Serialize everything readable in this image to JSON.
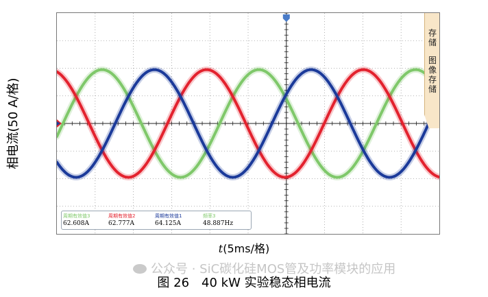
{
  "chart_data": {
    "type": "line",
    "xlabel_italic": "t",
    "xlabel_rest": "(5ms/格)",
    "ylabel": "相电流(50 A/格)",
    "grid": true,
    "x_divisions": 10,
    "y_divisions": 8,
    "x_range_div": [
      0,
      10
    ],
    "y_range_div": [
      -4,
      4
    ],
    "series": [
      {
        "color": "#7fc86a",
        "amplitude_div": 1.95,
        "phase_deg": -14
      },
      {
        "color": "#e3222e",
        "amplitude_div": 1.95,
        "phase_deg": 106
      },
      {
        "color": "#1b3a9a",
        "amplitude_div": 1.95,
        "phase_deg": 226
      }
    ],
    "cycles_per_screen": 2.44,
    "readouts": [
      {
        "label": "周期有效值3",
        "value": "62.608A",
        "color": "#7fc86a"
      },
      {
        "label": "周期有效值2",
        "value": "62.777A",
        "color": "#e3222e"
      },
      {
        "label": "周期有效值1",
        "value": "64.125A",
        "color": "#1b3a9a"
      },
      {
        "label": "频率3",
        "value": "48.887Hz",
        "color": "#7fc86a"
      }
    ]
  },
  "side_panel": {
    "buttons": [
      "存储",
      "图像存储"
    ]
  },
  "caption": "图 26　40 kW 实验稳态相电流",
  "watermark": "公众号 · SiC碳化硅MOS管及功率模块的应用"
}
